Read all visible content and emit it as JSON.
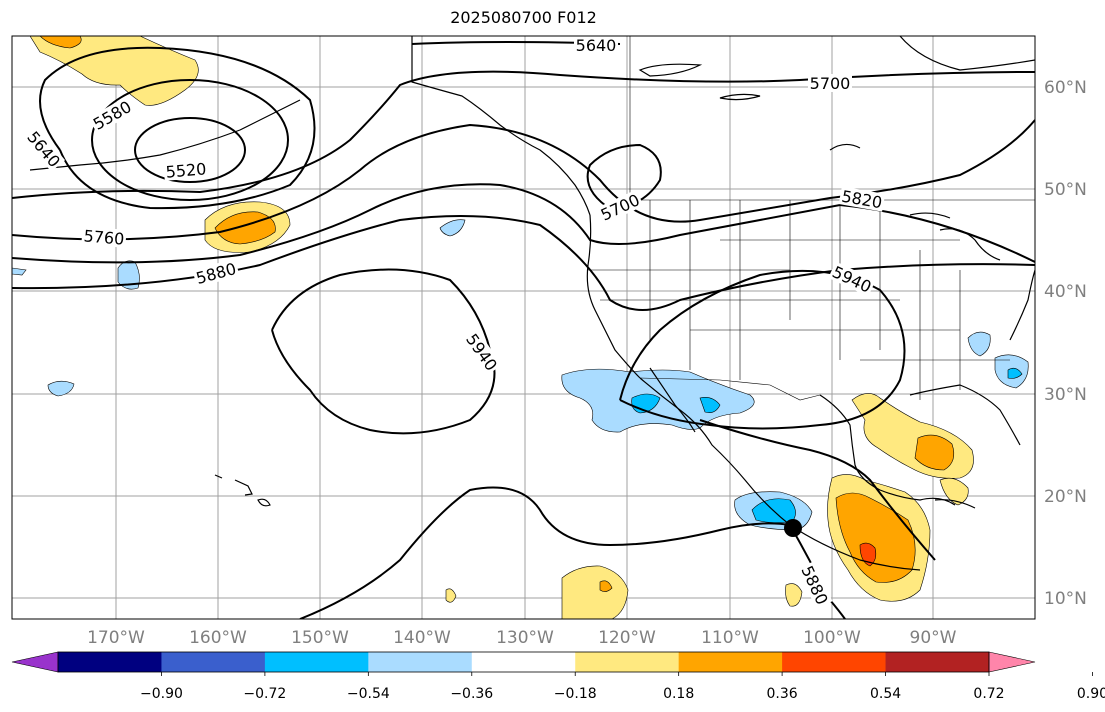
{
  "title": "2025080700 F012",
  "map": {
    "lon_labels": [
      "170°W",
      "160°W",
      "150°W",
      "140°W",
      "130°W",
      "120°W",
      "110°W",
      "100°W",
      "90°W"
    ],
    "lat_labels": [
      "60°N",
      "50°N",
      "40°N",
      "30°N",
      "20°N",
      "10°N"
    ],
    "contour_labels": [
      "5640",
      "5700",
      "5580",
      "5520",
      "5640",
      "5760",
      "5880",
      "5940",
      "5700",
      "5820",
      "5940",
      "5880"
    ],
    "storm_marker": "tropical-cyclone-position"
  },
  "colorbar": {
    "colors": [
      "#9933cc",
      "#000080",
      "#3a5fcd",
      "#00bfff",
      "#aadcff",
      "#ffffff",
      "#ffe980",
      "#ffa500",
      "#ff4500",
      "#b22222",
      "#ff85aa"
    ],
    "tick_labels": [
      "−0.90",
      "−0.72",
      "−0.54",
      "−0.36",
      "−0.18",
      "0.18",
      "0.36",
      "0.54",
      "0.72",
      "0.90"
    ]
  }
}
